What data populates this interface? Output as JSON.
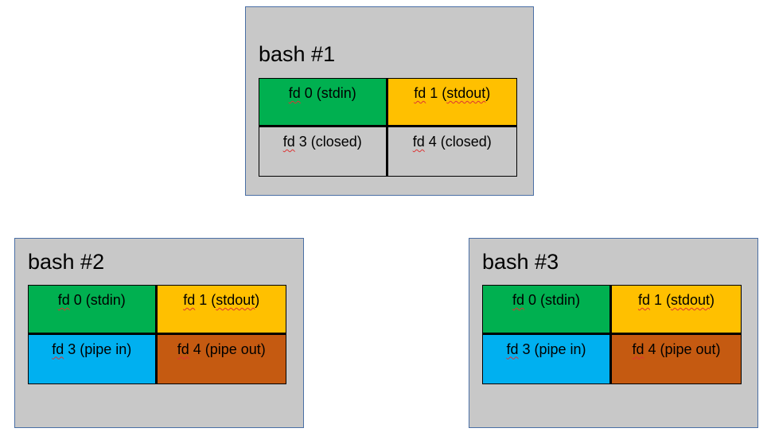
{
  "colors": {
    "stdin": "#00b050",
    "stdout": "#ffc000",
    "closed": "#c8c8c8",
    "pipe_in": "#00b0f0",
    "pipe_out": "#c55a11",
    "box_fill": "#c8c8c8",
    "box_border": "#4a6fa5"
  },
  "processes": [
    {
      "title": "bash #1",
      "fds": [
        {
          "prefix": "fd",
          "rest": " 0 (stdin)",
          "role": "stdin"
        },
        {
          "prefix": "fd",
          "rest": " 1 (",
          "word": "stdout",
          "after": ")",
          "role": "stdout"
        },
        {
          "prefix": "fd",
          "rest": " 3 (closed)",
          "role": "closed"
        },
        {
          "prefix": "fd",
          "rest": " 4 (closed)",
          "role": "closed"
        }
      ]
    },
    {
      "title": "bash #2",
      "fds": [
        {
          "prefix": "fd",
          "rest": " 0 (stdin)",
          "role": "stdin"
        },
        {
          "prefix": "fd",
          "rest": " 1 (",
          "word": "stdout",
          "after": ")",
          "role": "stdout"
        },
        {
          "prefix": "fd",
          "rest": " 3 (pipe in)",
          "role": "pipe_in"
        },
        {
          "prefix": "fd",
          "rest": " 4 (pipe out)",
          "role": "pipe_out"
        }
      ]
    },
    {
      "title": "bash #3",
      "fds": [
        {
          "prefix": "fd",
          "rest": " 0 (stdin)",
          "role": "stdin"
        },
        {
          "prefix": "fd",
          "rest": " 1 (",
          "word": "stdout",
          "after": ")",
          "role": "stdout"
        },
        {
          "prefix": "fd",
          "rest": " 3 (pipe in)",
          "role": "pipe_in"
        },
        {
          "prefix": "fd",
          "rest": " 4 (pipe out)",
          "role": "pipe_out"
        }
      ]
    }
  ]
}
